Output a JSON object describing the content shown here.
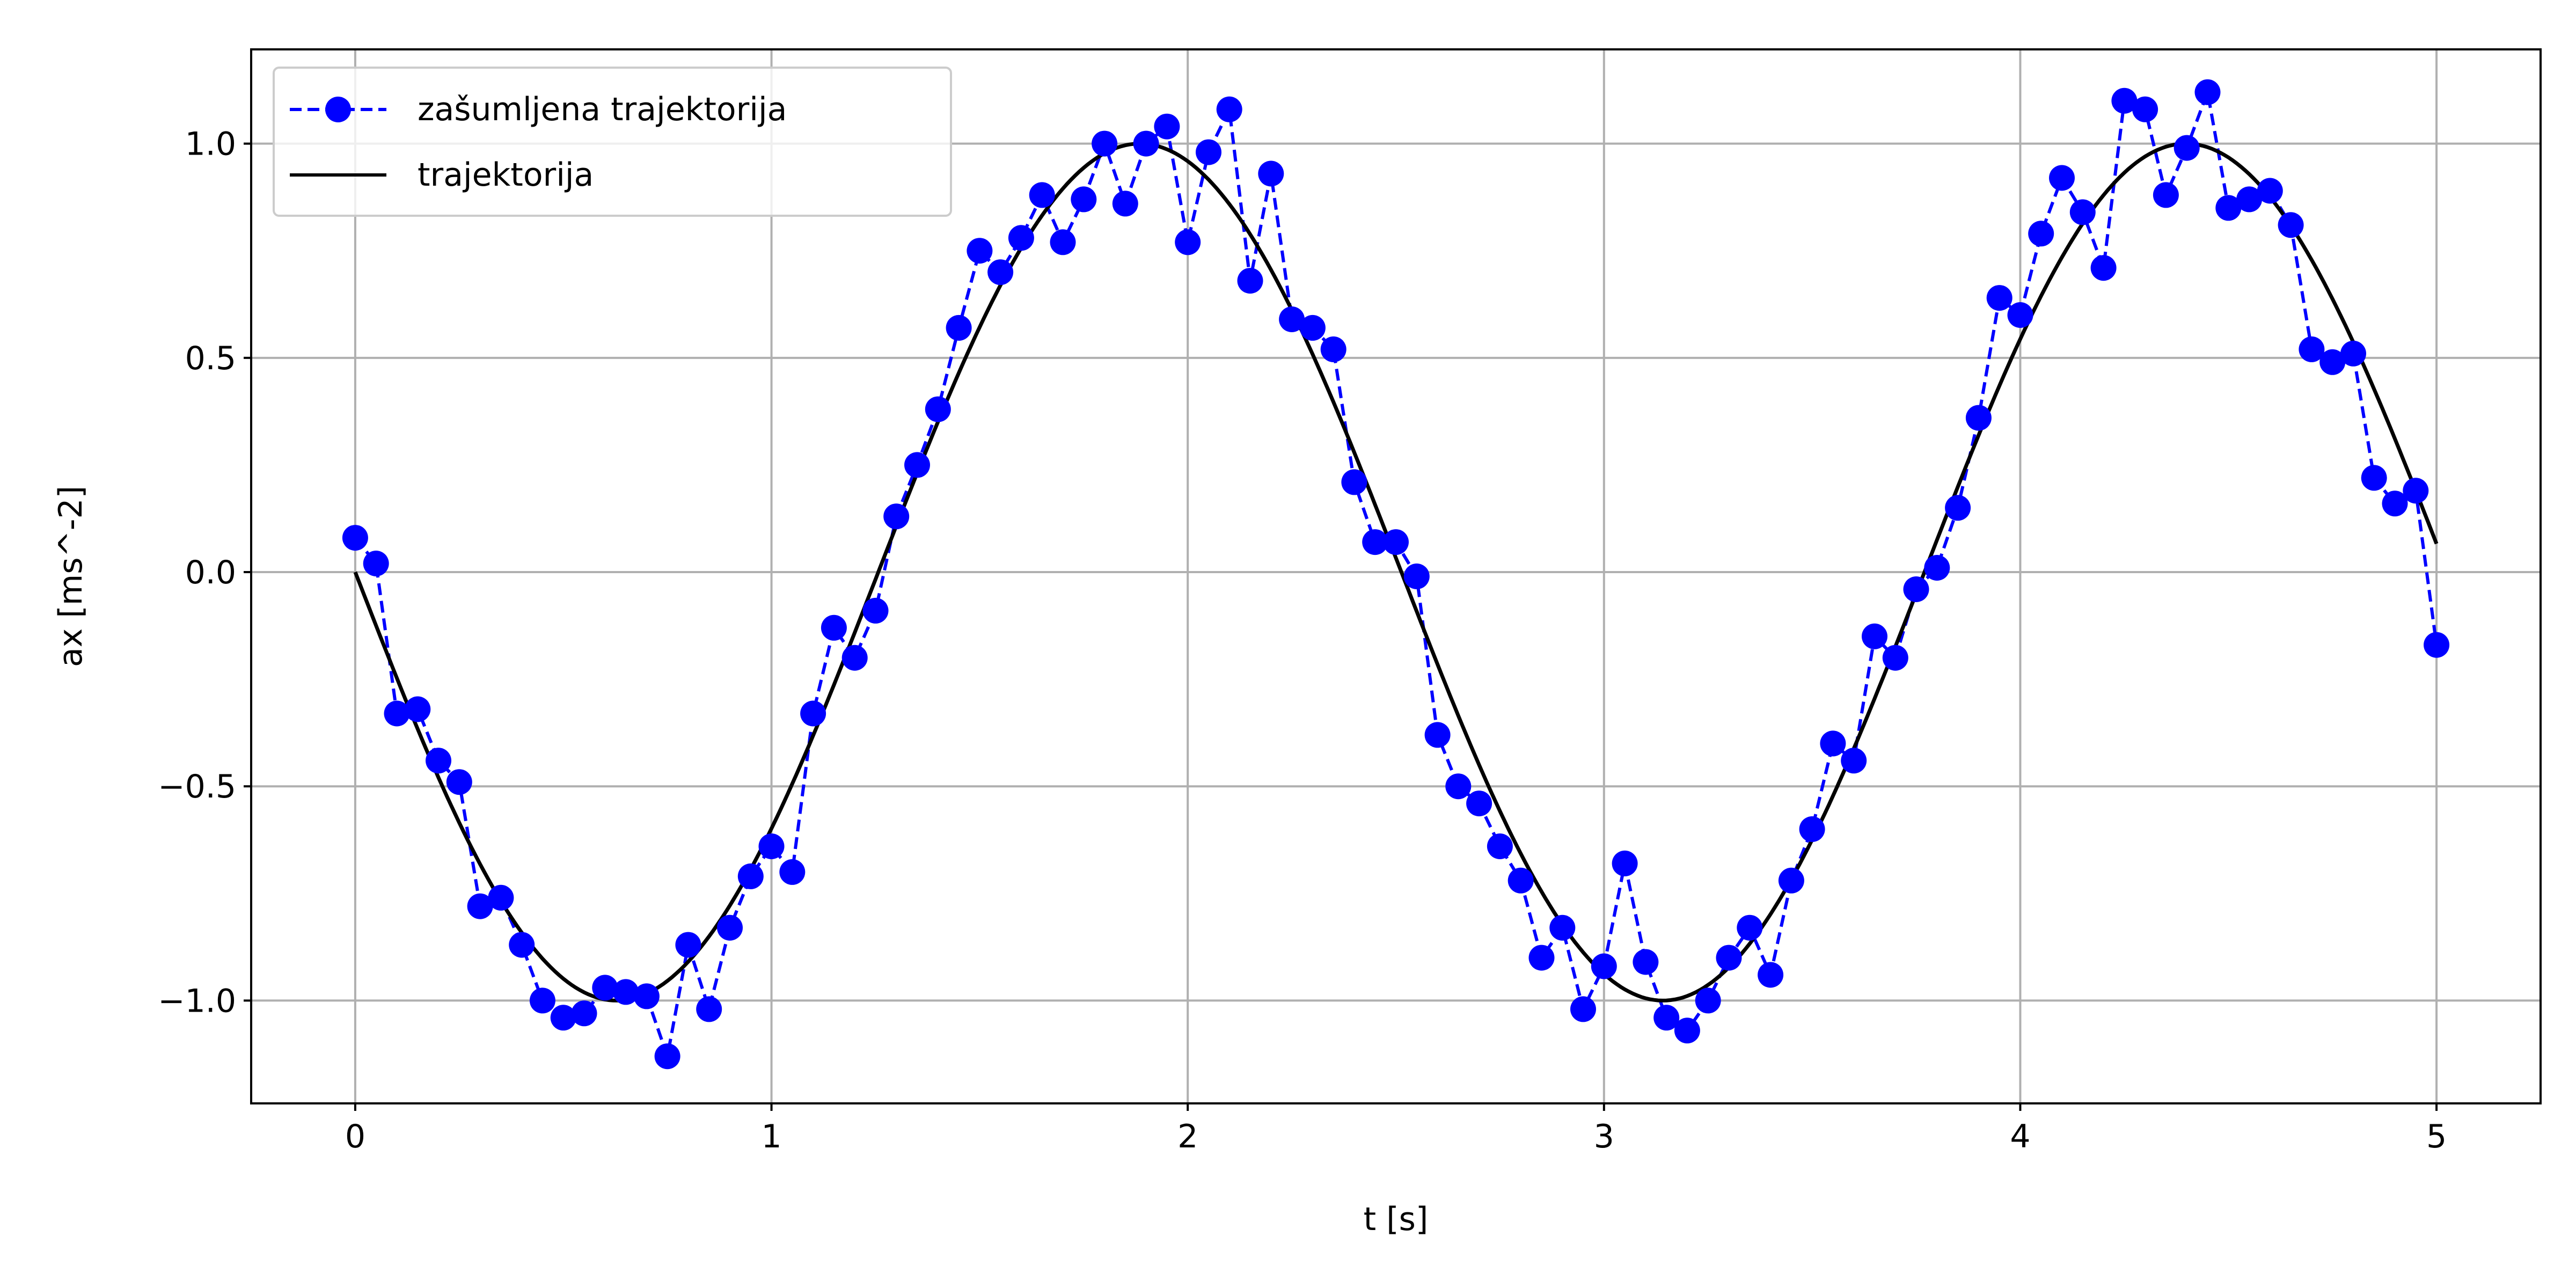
{
  "chart_data": {
    "type": "line",
    "xlabel": "t [s]",
    "ylabel": "ax [ms^-2]",
    "xlim": [
      -0.25,
      5.25
    ],
    "ylim": [
      -1.24,
      1.22
    ],
    "xticks": [
      0,
      1,
      2,
      3,
      4,
      5
    ],
    "xtick_labels": [
      "0",
      "1",
      "2",
      "3",
      "4",
      "5"
    ],
    "yticks": [
      -1.0,
      -0.5,
      0.0,
      0.5,
      1.0
    ],
    "ytick_labels": [
      "−1.0",
      "−0.5",
      "0.0",
      "0.5",
      "1.0"
    ],
    "grid": true,
    "legend_position": "top-left",
    "series": [
      {
        "name": "zašumljena trajektorija",
        "style": "dashed-with-markers",
        "color": "#0000ff",
        "x": [
          0.0,
          0.05,
          0.1,
          0.15,
          0.2,
          0.25,
          0.3,
          0.35,
          0.4,
          0.45,
          0.5,
          0.55,
          0.6,
          0.65,
          0.7,
          0.75,
          0.8,
          0.85,
          0.9,
          0.95,
          1.0,
          1.05,
          1.1,
          1.15,
          1.2,
          1.25,
          1.3,
          1.35,
          1.4,
          1.45,
          1.5,
          1.55,
          1.6,
          1.65,
          1.7,
          1.75,
          1.8,
          1.85,
          1.9,
          1.95,
          2.0,
          2.05,
          2.1,
          2.15,
          2.2,
          2.25,
          2.3,
          2.35,
          2.4,
          2.45,
          2.5,
          2.55,
          2.6,
          2.65,
          2.7,
          2.75,
          2.8,
          2.85,
          2.9,
          2.95,
          3.0,
          3.05,
          3.1,
          3.15,
          3.2,
          3.25,
          3.3,
          3.35,
          3.4,
          3.45,
          3.5,
          3.55,
          3.6,
          3.65,
          3.7,
          3.75,
          3.8,
          3.85,
          3.9,
          3.95,
          4.0,
          4.05,
          4.1,
          4.15,
          4.2,
          4.25,
          4.3,
          4.35,
          4.4,
          4.45,
          4.5,
          4.55,
          4.6,
          4.65,
          4.7,
          4.75,
          4.8,
          4.85,
          4.9,
          4.95,
          5.0
        ],
        "y": [
          0.08,
          0.02,
          -0.33,
          -0.32,
          -0.44,
          -0.49,
          -0.78,
          -0.76,
          -0.87,
          -1.0,
          -1.04,
          -1.03,
          -0.97,
          -0.98,
          -0.99,
          -1.13,
          -0.87,
          -1.02,
          -0.83,
          -0.71,
          -0.64,
          -0.7,
          -0.33,
          -0.13,
          -0.2,
          -0.09,
          0.13,
          0.25,
          0.38,
          0.57,
          0.75,
          0.7,
          0.78,
          0.88,
          0.77,
          0.87,
          1.0,
          0.86,
          1.0,
          1.04,
          0.77,
          0.98,
          1.08,
          0.68,
          0.93,
          0.59,
          0.57,
          0.52,
          0.21,
          0.07,
          0.07,
          -0.01,
          -0.38,
          -0.5,
          -0.54,
          -0.64,
          -0.72,
          -0.9,
          -0.83,
          -1.02,
          -0.92,
          -0.68,
          -0.91,
          -1.04,
          -1.07,
          -1.0,
          -0.9,
          -0.83,
          -0.94,
          -0.72,
          -0.6,
          -0.4,
          -0.44,
          -0.15,
          -0.2,
          -0.04,
          0.01,
          0.15,
          0.36,
          0.64,
          0.6,
          0.79,
          0.92,
          0.84,
          0.71,
          1.1,
          1.08,
          0.88,
          0.99,
          1.12,
          0.85,
          0.87,
          0.89,
          0.81,
          0.52,
          0.49,
          0.51,
          0.22,
          0.16,
          0.19,
          -0.17
        ]
      },
      {
        "name": "trajektorija",
        "style": "solid",
        "color": "#000000",
        "function": "sin(-2.5*t)",
        "x_start": 0.0,
        "x_end": 5.0
      }
    ]
  }
}
